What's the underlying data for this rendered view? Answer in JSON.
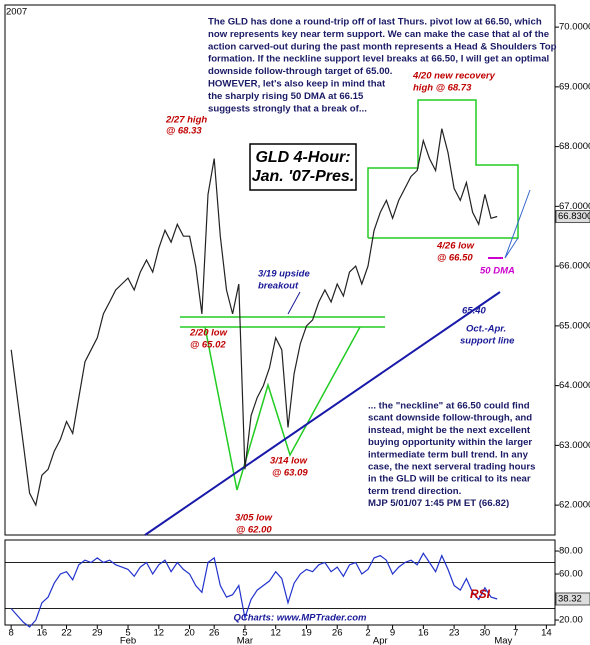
{
  "chart_data": [
    {
      "type": "line",
      "color": "#222222",
      "x": [
        0,
        1,
        2,
        3,
        4,
        5,
        6,
        7,
        8,
        9,
        10,
        11,
        12,
        13,
        14,
        15,
        16,
        17,
        18,
        19,
        20,
        21,
        22,
        23,
        24,
        25,
        26,
        27,
        28,
        29,
        30,
        31,
        32,
        33,
        34,
        35,
        36,
        37,
        38,
        39,
        40,
        41,
        42,
        43,
        44,
        45,
        46,
        47,
        48,
        49,
        50,
        51,
        52,
        53,
        54,
        55,
        56,
        57,
        58,
        59,
        60,
        61,
        62,
        63,
        64,
        65,
        66,
        67,
        68,
        69,
        70,
        71,
        72,
        73,
        74,
        75,
        76,
        77,
        78,
        79
      ],
      "values": [
        64.6,
        63.8,
        63.0,
        62.2,
        62.0,
        62.5,
        62.6,
        62.9,
        63.1,
        63.4,
        63.2,
        63.8,
        64.4,
        64.6,
        64.8,
        65.2,
        65.4,
        65.6,
        65.7,
        65.8,
        65.6,
        65.9,
        66.1,
        65.9,
        66.3,
        66.6,
        66.4,
        66.7,
        66.5,
        66.5,
        66.0,
        65.2,
        67.2,
        67.8,
        66.5,
        65.6,
        65.2,
        65.7,
        62.6,
        63.5,
        63.8,
        64.0,
        64.3,
        64.8,
        64.6,
        63.3,
        64.2,
        64.7,
        65.0,
        65.1,
        65.4,
        65.6,
        65.4,
        65.7,
        65.5,
        65.9,
        66.0,
        65.7,
        66.0,
        66.6,
        66.9,
        67.1,
        66.8,
        67.1,
        67.3,
        67.5,
        67.6,
        68.1,
        67.8,
        67.6,
        68.3,
        67.9,
        67.3,
        67.1,
        67.4,
        66.9,
        66.7,
        67.2,
        66.8,
        66.83
      ],
      "xlim": [
        -1,
        88.4
      ],
      "ylim": [
        61.5,
        70.37
      ],
      "yticks": [
        {
          "value": 70,
          "label": "70.0000"
        },
        {
          "value": 69,
          "label": "69.0000"
        },
        {
          "value": 68,
          "label": "68.0000"
        },
        {
          "value": 67,
          "label": "67.0000"
        },
        {
          "value": 66,
          "label": "66.0000"
        },
        {
          "value": 65,
          "label": "65.0000"
        },
        {
          "value": 64,
          "label": "64.0000"
        },
        {
          "value": 63,
          "label": "63.0000"
        },
        {
          "value": 62,
          "label": "62.0000"
        }
      ],
      "last_label": "66.8300",
      "annotations": [
        "GLD 4-Hour:",
        "Jan. '07-Pres.",
        "2/27 high",
        "@ 68.33",
        "4/20 new recovery",
        "high @ 68.73",
        "3/19 upside",
        "breakout",
        "2/20 low",
        "@ 65.02",
        "4/26 low",
        "@ 66.50",
        "50 DMA",
        "65.40",
        "Oct.-Apr.",
        "support line",
        "3/14 low",
        "@ 63.09",
        "3/05 low",
        "@ 62.00",
        "2007"
      ],
      "commentary_top": [
        "The GLD has done a round-trip off of last Thurs. pivot low at 66.50, which",
        "now represents key near term support. We can make the case that al of the",
        "action carved-out during the past month represents a Head & Shoulders Top",
        "formation. If the neckline support level breaks at 66.50, I will get an optimal",
        "downside follow-through target of 65.00.",
        "HOWEVER, let's also keep in mind that",
        "the sharply rising 50 DMA at 66.15",
        "suggests strongly that a break of..."
      ],
      "commentary_bottom": [
        "... the \"neckline\" at 66.50 could find",
        "scant downside follow-through, and",
        "instead, might be the next excellent",
        "buying opportunity within the larger",
        "intermediate term bull trend. In any",
        "case, the next serveral trading hours",
        "in the GLD will be critical to its near",
        "term trend direction.",
        "MJP  5/01/07  1:45 PM ET (66.82)"
      ]
    },
    {
      "type": "line",
      "title": "RSI",
      "color": "#2233cc",
      "values": [
        30,
        24,
        18,
        14,
        20,
        35,
        40,
        52,
        60,
        62,
        55,
        68,
        72,
        70,
        74,
        70,
        72,
        68,
        66,
        64,
        58,
        66,
        70,
        60,
        68,
        72,
        62,
        70,
        64,
        60,
        50,
        44,
        70,
        74,
        50,
        40,
        42,
        50,
        22,
        38,
        46,
        50,
        54,
        62,
        56,
        35,
        52,
        60,
        64,
        62,
        68,
        70,
        62,
        66,
        58,
        68,
        70,
        60,
        64,
        74,
        76,
        72,
        60,
        66,
        70,
        72,
        68,
        78,
        70,
        62,
        76,
        64,
        50,
        46,
        56,
        44,
        38,
        48,
        40,
        38.32
      ],
      "ylim": [
        15.7,
        89.6
      ],
      "yticks": [
        {
          "value": 80,
          "label": "80.00"
        },
        {
          "value": 60,
          "label": "60.00"
        },
        {
          "value": 20,
          "label": "20.00"
        }
      ],
      "levels": [
        70,
        30
      ],
      "last_label": "38.32",
      "source": "QCharts: www.MPTrader.com",
      "xticks": [
        {
          "value": 0,
          "label": "8"
        },
        {
          "value": 5,
          "label": "16"
        },
        {
          "value": 9,
          "label": "22"
        },
        {
          "value": 14,
          "label": "29"
        },
        {
          "value": 19,
          "label": "5"
        },
        {
          "value": 24,
          "label": "12"
        },
        {
          "value": 29,
          "label": "20"
        },
        {
          "value": 33,
          "label": "26"
        },
        {
          "value": 38,
          "label": "5"
        },
        {
          "value": 43,
          "label": "12"
        },
        {
          "value": 48,
          "label": "19"
        },
        {
          "value": 53,
          "label": "26"
        },
        {
          "value": 58,
          "label": "2"
        },
        {
          "value": 62,
          "label": "9"
        },
        {
          "value": 67,
          "label": "16"
        },
        {
          "value": 72,
          "label": "23"
        },
        {
          "value": 77,
          "label": "30"
        },
        {
          "value": 82,
          "label": "7"
        },
        {
          "value": 87,
          "label": "14"
        }
      ],
      "month_ticks": [
        {
          "value": 19,
          "label": "Feb"
        },
        {
          "value": 38,
          "label": "Mar"
        },
        {
          "value": 60,
          "label": "Apr"
        },
        {
          "value": 80,
          "label": "May"
        }
      ]
    }
  ]
}
